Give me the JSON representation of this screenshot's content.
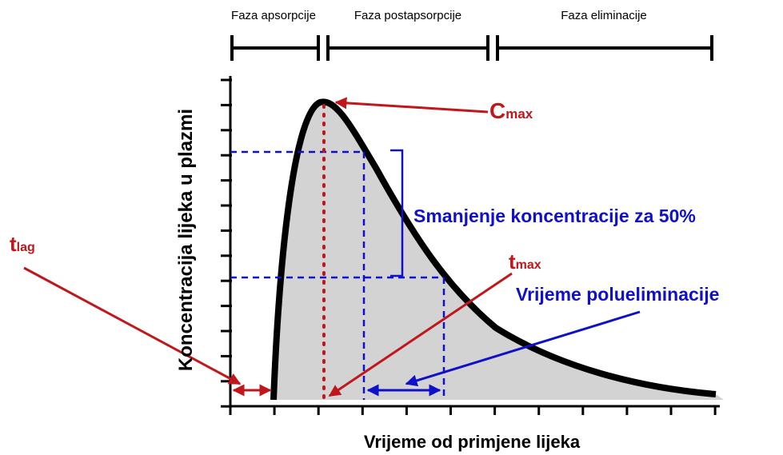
{
  "phases": [
    "Faza apsorpcije",
    "Faza postapsorpcije",
    "Faza eliminacije"
  ],
  "y_axis_label": "Koncentracija lijeka u plazmi",
  "x_axis_label": "Vrijeme od primjene lijeka",
  "annotations": {
    "cmax": {
      "main": "C",
      "sub": "max"
    },
    "tlag": {
      "main": "t",
      "sub": "lag"
    },
    "tmax": {
      "main": "t",
      "sub": "max"
    },
    "half_drop": "Smanjenje koncentracije za 50%",
    "half_life": "Vrijeme polueliminacije"
  }
}
